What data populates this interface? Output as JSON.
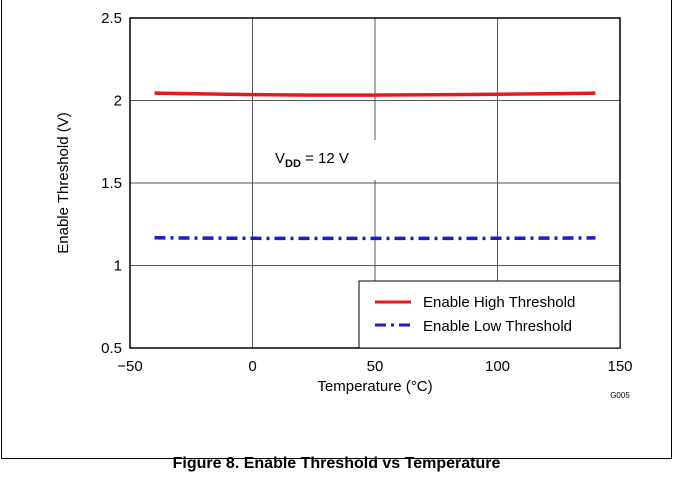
{
  "chart_data": {
    "type": "line",
    "xlabel": "Temperature (°C)",
    "ylabel": "Enable Threshold (V)",
    "xlim": [
      -50,
      150
    ],
    "ylim": [
      0.5,
      2.5
    ],
    "xticks": [
      -50,
      0,
      50,
      100,
      150
    ],
    "xtick_labels": [
      "−50",
      "0",
      "50",
      "100",
      "150"
    ],
    "yticks": [
      0.5,
      1,
      1.5,
      2,
      2.5
    ],
    "ytick_labels": [
      "0.5",
      "1",
      "1.5",
      "2",
      "2.5"
    ],
    "grid": true,
    "legend_position": "bottom-right",
    "series": [
      {
        "name": "Enable High Threshold",
        "color": "#e8191e",
        "style": "solid",
        "x": [
          -40,
          -20,
          0,
          25,
          50,
          75,
          100,
          125,
          140
        ],
        "y": [
          2.045,
          2.04,
          2.036,
          2.033,
          2.033,
          2.035,
          2.038,
          2.042,
          2.045
        ]
      },
      {
        "name": "Enable Low Threshold",
        "color": "#1d1dc8",
        "style": "dash-dot",
        "x": [
          -40,
          -20,
          0,
          25,
          50,
          75,
          100,
          125,
          140
        ],
        "y": [
          1.168,
          1.166,
          1.165,
          1.164,
          1.164,
          1.164,
          1.165,
          1.166,
          1.167
        ]
      }
    ],
    "annotation": {
      "prefix": "V",
      "subscript": "DD",
      "suffix": " = 12 V",
      "x": 50,
      "y": 1.7
    },
    "code": "G005"
  },
  "caption": "Figure 8. Enable Threshold vs Temperature"
}
